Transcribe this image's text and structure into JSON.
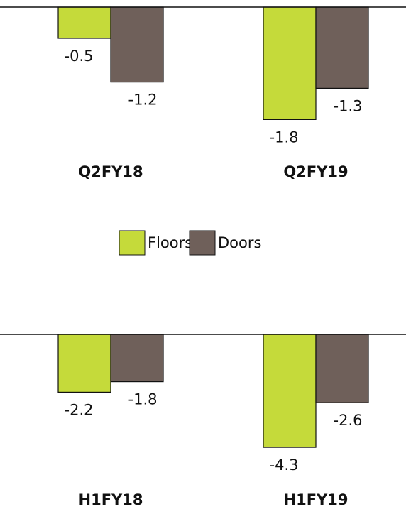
{
  "chart_data": [
    {
      "type": "bar",
      "categories": [
        "Q2FY18",
        "Q2FY19"
      ],
      "ylim": [
        -2,
        0
      ],
      "series": [
        {
          "name": "Floors",
          "color": "#c5da3a",
          "values": [
            -0.5,
            -1.8
          ]
        },
        {
          "name": "Doors",
          "color": "#6f605a",
          "values": [
            -1.2,
            -1.3
          ]
        }
      ]
    },
    {
      "type": "bar",
      "categories": [
        "H1FY18",
        "H1FY19"
      ],
      "ylim": [
        -5,
        0
      ],
      "series": [
        {
          "values": [
            -2.2,
            -4.3
          ]
        },
        {
          "values": [
            -1.8,
            -2.6
          ]
        }
      ]
    }
  ]
}
